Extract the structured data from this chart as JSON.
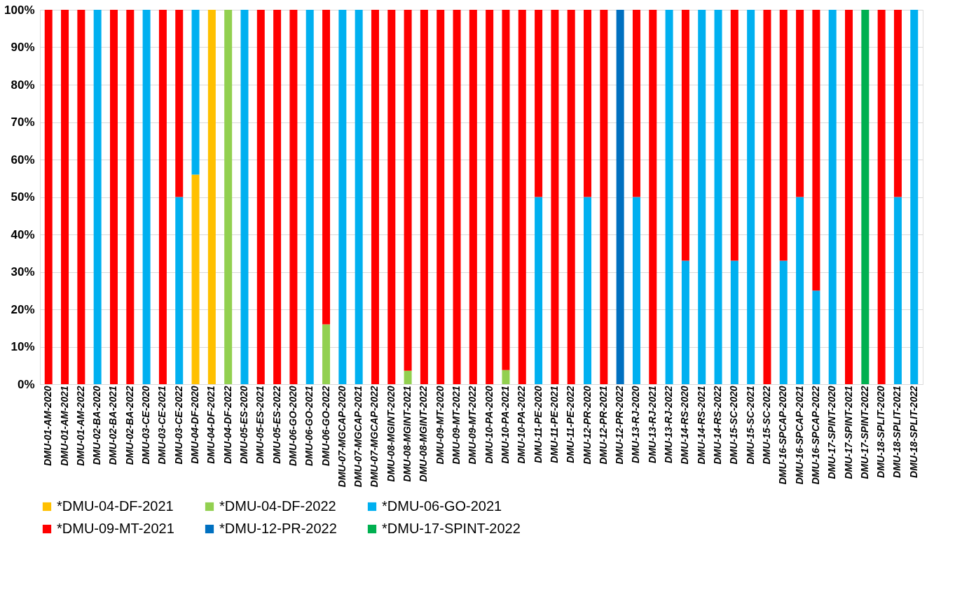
{
  "chart_data": {
    "type": "bar",
    "stacked": true,
    "grid": "y",
    "legend": "bottom",
    "categories": [
      "DMU-01-AM-2020",
      "DMU-01-AM-2021",
      "DMU-01-AM-2022",
      "DMU-02-BA-2020",
      "DMU-02-BA-2021",
      "DMU-02-BA-2022",
      "DMU-03-CE-2020",
      "DMU-03-CE-2021",
      "DMU-03-CE-2022",
      "DMU-04-DF-2020",
      "DMU-04-DF-2021",
      "DMU-04-DF-2022",
      "DMU-05-ES-2020",
      "DMU-05-ES-2021",
      "DMU-05-ES-2022",
      "DMU-06-GO-2020",
      "DMU-06-GO-2021",
      "DMU-06-GO-2022",
      "DMU-07-MGCAP-2020",
      "DMU-07-MGCAP-2021",
      "DMU-07-MGCAP-2022",
      "DMU-08-MGINT-2020",
      "DMU-08-MGINT-2021",
      "DMU-08-MGINT-2022",
      "DMU-09-MT-2020",
      "DMU-09-MT-2021",
      "DMU-09-MT-2022",
      "DMU-10-PA-2020",
      "DMU-10-PA-2021",
      "DMU-10-PA-2022",
      "DMU-11-PE-2020",
      "DMU-11-PE-2021",
      "DMU-11-PE-2022",
      "DMU-12-PR-2020",
      "DMU-12-PR-2021",
      "DMU-12-PR-2022",
      "DMU-13-RJ-2020",
      "DMU-13-RJ-2021",
      "DMU-13-RJ-2022",
      "DMU-14-RS-2020",
      "DMU-14-RS-2021",
      "DMU-14-RS-2022",
      "DMU-15-SC-2020",
      "DMU-15-SC-2021",
      "DMU-15-SC-2022",
      "DMU-16-SPCAP-2020",
      "DMU-16-SPCAP-2021",
      "DMU-16-SPCAP-2022",
      "DMU-17-SPINT-2020",
      "DMU-17-SPINT-2021",
      "DMU-17-SPINT-2022",
      "DMU-18-SPLIT-2020",
      "DMU-18-SPLIT-2021",
      "DMU-18-SPLIT-2022"
    ],
    "ylim": [
      0,
      100
    ],
    "yticks": [
      {
        "value": 0,
        "label": "0%"
      },
      {
        "value": 10,
        "label": "10%"
      },
      {
        "value": 20,
        "label": "20%"
      },
      {
        "value": 30,
        "label": "30%"
      },
      {
        "value": 40,
        "label": "40%"
      },
      {
        "value": 50,
        "label": "50%"
      },
      {
        "value": 60,
        "label": "60%"
      },
      {
        "value": 70,
        "label": "70%"
      },
      {
        "value": 80,
        "label": "80%"
      },
      {
        "value": 90,
        "label": "90%"
      },
      {
        "value": 100,
        "label": "100%"
      }
    ],
    "series": [
      {
        "name": "*DMU-04-DF-2021",
        "color": "#ffc000",
        "values": [
          null,
          null,
          null,
          null,
          null,
          null,
          null,
          null,
          null,
          56,
          100,
          null,
          null,
          null,
          null,
          null,
          null,
          null,
          null,
          null,
          null,
          null,
          null,
          null,
          null,
          null,
          null,
          null,
          null,
          null,
          null,
          null,
          null,
          null,
          null,
          null,
          null,
          null,
          null,
          null,
          null,
          null,
          null,
          null,
          null,
          null,
          null,
          null,
          null,
          null,
          null,
          null,
          null,
          null
        ]
      },
      {
        "name": "*DMU-04-DF-2022",
        "color": "#92d050",
        "values": [
          null,
          null,
          null,
          null,
          null,
          null,
          null,
          null,
          null,
          null,
          null,
          100,
          null,
          null,
          null,
          null,
          null,
          16,
          null,
          null,
          null,
          null,
          3.6,
          null,
          null,
          null,
          null,
          null,
          3.8,
          null,
          null,
          null,
          null,
          null,
          null,
          null,
          null,
          null,
          null,
          null,
          null,
          null,
          null,
          null,
          null,
          null,
          null,
          null,
          null,
          null,
          null,
          null,
          null,
          null
        ]
      },
      {
        "name": "*DMU-06-GO-2021",
        "color": "#00b0f0",
        "values": [
          null,
          null,
          null,
          100,
          null,
          null,
          100,
          null,
          50,
          44,
          null,
          null,
          100,
          null,
          null,
          null,
          100,
          null,
          100,
          100,
          null,
          null,
          null,
          null,
          null,
          null,
          null,
          null,
          null,
          null,
          50,
          null,
          null,
          50,
          null,
          null,
          50,
          null,
          100,
          33,
          100,
          100,
          33,
          100,
          null,
          33,
          50,
          25,
          100,
          null,
          null,
          null,
          50,
          100
        ]
      },
      {
        "name": "*DMU-09-MT-2021",
        "color": "#ff0000",
        "values": [
          100,
          100,
          100,
          null,
          100,
          100,
          null,
          100,
          50,
          null,
          null,
          null,
          null,
          100,
          100,
          100,
          null,
          84,
          null,
          null,
          100,
          100,
          96.4,
          100,
          100,
          100,
          100,
          100,
          96.2,
          100,
          50,
          100,
          100,
          50,
          100,
          null,
          50,
          100,
          null,
          67,
          null,
          null,
          67,
          null,
          100,
          67,
          50,
          75,
          null,
          100,
          null,
          100,
          50,
          null
        ]
      },
      {
        "name": "*DMU-12-PR-2022",
        "color": "#0070c0",
        "values": [
          null,
          null,
          null,
          null,
          null,
          null,
          null,
          null,
          null,
          null,
          null,
          null,
          null,
          null,
          null,
          null,
          null,
          null,
          null,
          null,
          null,
          null,
          null,
          null,
          null,
          null,
          null,
          null,
          null,
          null,
          null,
          null,
          null,
          null,
          null,
          100,
          null,
          null,
          null,
          null,
          null,
          null,
          null,
          null,
          null,
          null,
          null,
          null,
          null,
          null,
          null,
          null,
          null,
          null
        ]
      },
      {
        "name": "*DMU-17-SPINT-2022",
        "color": "#00b050",
        "values": [
          null,
          null,
          null,
          null,
          null,
          null,
          null,
          null,
          null,
          null,
          null,
          null,
          null,
          null,
          null,
          null,
          null,
          null,
          null,
          null,
          null,
          null,
          null,
          null,
          null,
          null,
          null,
          null,
          null,
          null,
          null,
          null,
          null,
          null,
          null,
          null,
          null,
          null,
          null,
          null,
          null,
          null,
          null,
          null,
          null,
          null,
          null,
          null,
          null,
          null,
          100,
          null,
          null,
          null
        ]
      }
    ]
  }
}
